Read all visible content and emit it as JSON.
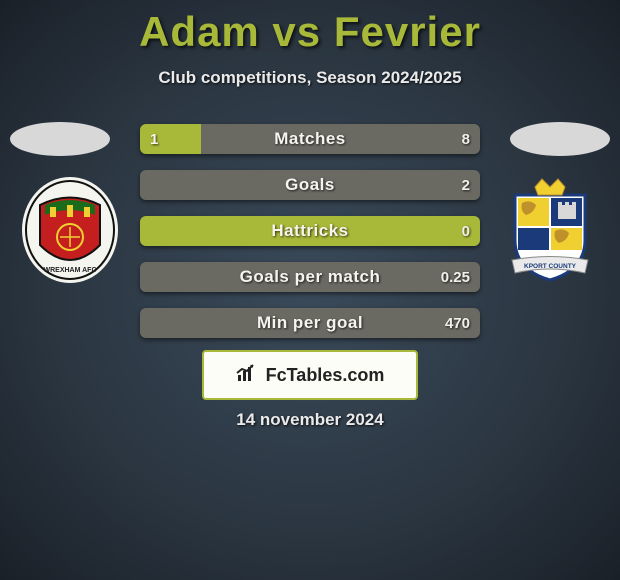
{
  "title": "Adam vs Fevrier",
  "subtitle": "Club competitions, Season 2024/2025",
  "date": "14 november 2024",
  "brand": "FcTables.com",
  "colors": {
    "accent": "#a8b838",
    "bar_right": "#6a6a62",
    "text_light": "#f5f5ee"
  },
  "bars": [
    {
      "label": "Matches",
      "left_val": "1",
      "right_val": "8",
      "left_pct": 18,
      "right_pct": 82
    },
    {
      "label": "Goals",
      "left_val": "",
      "right_val": "2",
      "left_pct": 0,
      "right_pct": 100
    },
    {
      "label": "Hattricks",
      "left_val": "",
      "right_val": "0",
      "left_pct": 100,
      "right_pct": 0,
      "full_yellow": true
    },
    {
      "label": "Goals per match",
      "left_val": "",
      "right_val": "0.25",
      "left_pct": 0,
      "right_pct": 100
    },
    {
      "label": "Min per goal",
      "left_val": "",
      "right_val": "470",
      "left_pct": 0,
      "right_pct": 100
    }
  ],
  "left_crest": {
    "primary": "#c41e1e",
    "secondary": "#1a6b1a",
    "accent": "#f0d030",
    "text": "WREXHAM AFC"
  },
  "right_crest": {
    "primary": "#1a3a7a",
    "secondary": "#f0d030",
    "tertiary": "#ffffff",
    "text": "KPORT COUNTY"
  }
}
